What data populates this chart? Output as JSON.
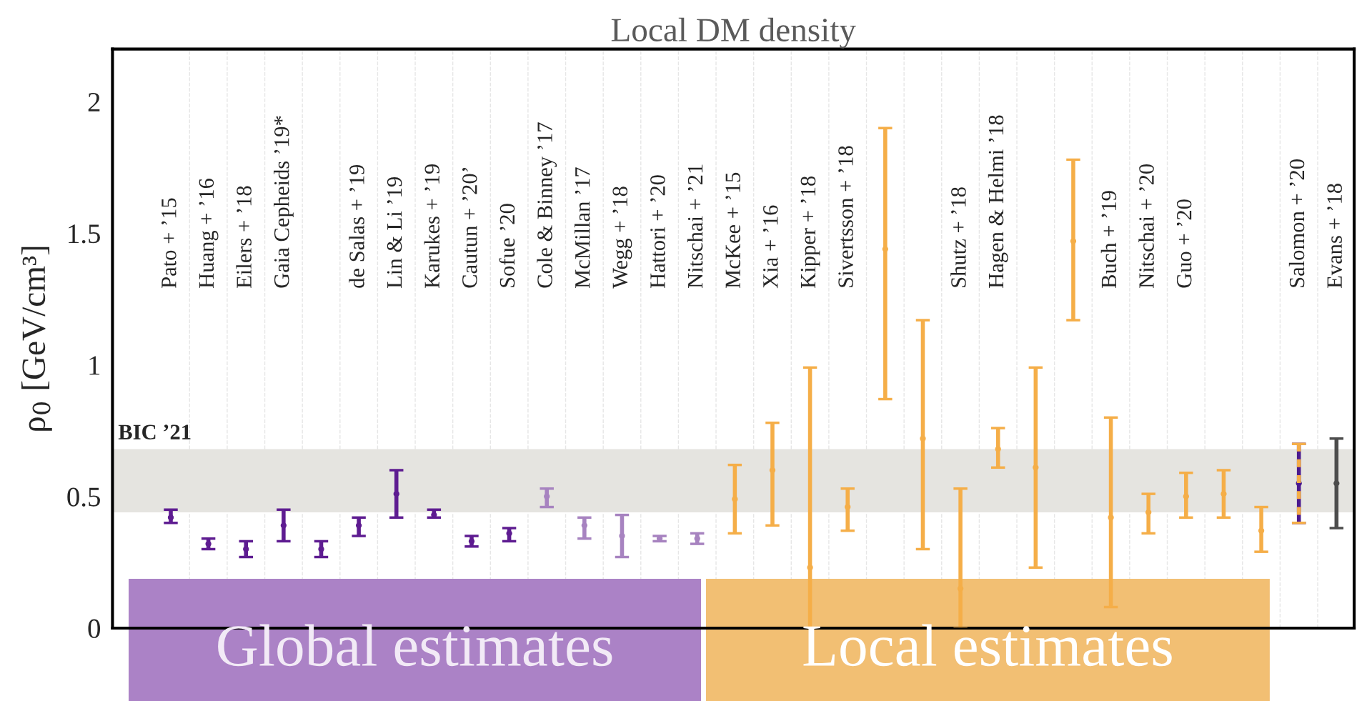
{
  "chart_data": {
    "type": "scatter",
    "title": "Local DM density",
    "ylabel": "ρ$_{0}$ [GeV/cm³]",
    "categories": [
      "Pato + ’15",
      "Huang + ’16",
      "Eilers + ’18",
      "Gaia Cepheids ’19*",
      null,
      "de Salas + ’19",
      "Lin & Li ’19",
      "Karukes + ’19",
      "Cautun + ’20’",
      "Sofue ’20",
      "Cole & Binney ’17",
      "McMillan ’17",
      "Wegg + ’18",
      "Hattori + ’20",
      "Nitschai + ’21",
      "McKee + ’15",
      "Xia + ’16",
      "Kipper + ’18",
      "Sivertsson + ’18",
      null,
      null,
      "Shutz + ’18",
      "Hagen & Helmi ’18",
      null,
      null,
      "Buch + ’19",
      "Nitschai + ’20",
      "Guo + ’20",
      null,
      null,
      "Salomon + ’20",
      "Evans + ’18"
    ],
    "series": [
      {
        "color": "#5e1c91",
        "values": [
          0.42,
          0.32,
          0.3,
          0.39,
          0.3,
          0.39,
          0.51,
          0.43,
          0.33,
          0.36,
          null,
          null,
          null,
          null,
          null,
          null,
          null,
          null,
          null,
          null,
          null,
          null,
          null,
          null,
          null,
          null,
          null,
          null,
          null,
          null,
          null,
          null
        ],
        "errors": [
          [
            0.4,
            0.45
          ],
          [
            0.3,
            0.34
          ],
          [
            0.27,
            0.33
          ],
          [
            0.33,
            0.45
          ],
          [
            0.27,
            0.33
          ],
          [
            0.35,
            0.42
          ],
          [
            0.42,
            0.6
          ],
          [
            0.42,
            0.45
          ],
          [
            0.31,
            0.35
          ],
          [
            0.33,
            0.38
          ],
          null,
          null,
          null,
          null,
          null,
          null,
          null,
          null,
          null,
          null,
          null,
          null,
          null,
          null,
          null,
          null,
          null,
          null,
          null,
          null,
          null,
          null
        ]
      },
      {
        "color": "#a783c0",
        "values": [
          null,
          null,
          null,
          null,
          null,
          null,
          null,
          null,
          null,
          null,
          0.5,
          0.39,
          0.35,
          0.34,
          0.34,
          null,
          null,
          null,
          null,
          null,
          null,
          null,
          null,
          null,
          null,
          null,
          null,
          null,
          null,
          null,
          null,
          null
        ],
        "errors": [
          null,
          null,
          null,
          null,
          null,
          null,
          null,
          null,
          null,
          null,
          [
            0.46,
            0.53
          ],
          [
            0.34,
            0.42
          ],
          [
            0.27,
            0.43
          ],
          [
            0.33,
            0.35
          ],
          [
            0.32,
            0.36
          ],
          null,
          null,
          null,
          null,
          null,
          null,
          null,
          null,
          null,
          null,
          null,
          null,
          null,
          null,
          null,
          null,
          null
        ]
      },
      {
        "color": "#f5ae48",
        "values": [
          null,
          null,
          null,
          null,
          null,
          null,
          null,
          null,
          null,
          null,
          null,
          null,
          null,
          null,
          null,
          0.49,
          0.6,
          0.23,
          0.46,
          1.44,
          0.72,
          0.15,
          0.68,
          0.61,
          1.47,
          0.42,
          0.44,
          0.5,
          0.51,
          0.37,
          null,
          null
        ],
        "errors": [
          null,
          null,
          null,
          null,
          null,
          null,
          null,
          null,
          null,
          null,
          null,
          null,
          null,
          null,
          null,
          [
            0.36,
            0.62
          ],
          [
            0.39,
            0.78
          ],
          [
            0.0,
            0.99
          ],
          [
            0.37,
            0.53
          ],
          [
            0.87,
            1.9
          ],
          [
            0.3,
            1.17
          ],
          [
            0.0,
            0.53
          ],
          [
            0.61,
            0.76
          ],
          [
            0.23,
            0.99
          ],
          [
            1.17,
            1.78
          ],
          [
            0.08,
            0.8
          ],
          [
            0.36,
            0.51
          ],
          [
            0.42,
            0.59
          ],
          [
            0.42,
            0.6
          ],
          [
            0.29,
            0.46
          ],
          null,
          null
        ]
      },
      {
        "color": "#4b1a8f",
        "line_style": "dashed",
        "values": [
          null,
          null,
          null,
          null,
          null,
          null,
          null,
          null,
          null,
          null,
          null,
          null,
          null,
          null,
          null,
          null,
          null,
          null,
          null,
          null,
          null,
          null,
          null,
          null,
          null,
          null,
          null,
          null,
          null,
          null,
          0.55,
          null
        ],
        "errors": [
          null,
          null,
          null,
          null,
          null,
          null,
          null,
          null,
          null,
          null,
          null,
          null,
          null,
          null,
          null,
          null,
          null,
          null,
          null,
          null,
          null,
          null,
          null,
          null,
          null,
          null,
          null,
          null,
          null,
          null,
          [
            0.4,
            0.7
          ],
          null
        ]
      },
      {
        "color": "#4d4d4d",
        "values": [
          null,
          null,
          null,
          null,
          null,
          null,
          null,
          null,
          null,
          null,
          null,
          null,
          null,
          null,
          null,
          null,
          null,
          null,
          null,
          null,
          null,
          null,
          null,
          null,
          null,
          null,
          null,
          null,
          null,
          null,
          null,
          0.55
        ],
        "errors": [
          null,
          null,
          null,
          null,
          null,
          null,
          null,
          null,
          null,
          null,
          null,
          null,
          null,
          null,
          null,
          null,
          null,
          null,
          null,
          null,
          null,
          null,
          null,
          null,
          null,
          null,
          null,
          null,
          null,
          null,
          null,
          [
            0.38,
            0.72
          ]
        ]
      }
    ],
    "bands": [
      {
        "axis": "y",
        "from": 0.44,
        "to": 0.68,
        "label": "BIC ’21",
        "color": "#e5e4e0"
      }
    ],
    "annotations": [
      "Global estimates",
      "Local estimates"
    ],
    "marker": "circle",
    "ylim": [
      0,
      2.2
    ],
    "yticks": [
      0,
      0.5,
      1,
      1.5,
      2
    ],
    "grid": "x",
    "tick_labels": "y"
  }
}
